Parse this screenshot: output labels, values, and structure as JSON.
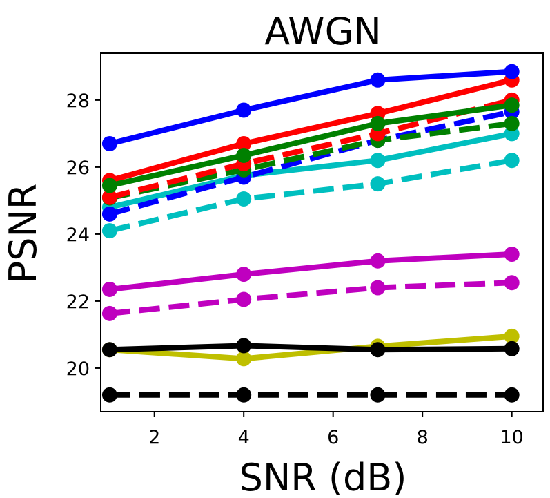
{
  "chart_data": {
    "type": "line",
    "title": "AWGN",
    "xlabel": "SNR (dB)",
    "ylabel": "PSNR",
    "xlim": [
      0.8,
      10.7
    ],
    "ylim": [
      18.7,
      29.4
    ],
    "x_ticks": [
      2,
      4,
      6,
      8,
      10
    ],
    "y_ticks": [
      20,
      22,
      24,
      26,
      28
    ],
    "x": [
      1,
      4,
      7,
      10
    ],
    "grid": false,
    "series": [
      {
        "name": "yellow-solid",
        "color": "#bfbf00",
        "dash": false,
        "values": [
          20.55,
          20.28,
          20.65,
          20.95
        ]
      },
      {
        "name": "black-dashed",
        "color": "#000000",
        "dash": true,
        "values": [
          19.2,
          19.2,
          19.2,
          19.2
        ]
      },
      {
        "name": "black-solid",
        "color": "#000000",
        "dash": false,
        "values": [
          20.55,
          20.67,
          20.55,
          20.58
        ]
      },
      {
        "name": "magenta-dashed",
        "color": "#bf00bf",
        "dash": true,
        "values": [
          21.63,
          22.05,
          22.4,
          22.55
        ]
      },
      {
        "name": "magenta-solid",
        "color": "#bf00bf",
        "dash": false,
        "values": [
          22.35,
          22.8,
          23.2,
          23.4
        ]
      },
      {
        "name": "cyan-dashed",
        "color": "#00bfbf",
        "dash": true,
        "values": [
          24.1,
          25.05,
          25.5,
          26.2
        ]
      },
      {
        "name": "cyan-solid",
        "color": "#00bfbf",
        "dash": false,
        "values": [
          24.8,
          25.75,
          26.2,
          27.0
        ]
      },
      {
        "name": "blue-dashed",
        "color": "#0000ff",
        "dash": true,
        "values": [
          24.6,
          25.7,
          26.8,
          27.65
        ]
      },
      {
        "name": "green-dashed",
        "color": "#008000",
        "dash": true,
        "values": [
          25.08,
          25.92,
          26.8,
          27.3
        ]
      },
      {
        "name": "red-dashed",
        "color": "#ff0000",
        "dash": true,
        "values": [
          25.1,
          26.1,
          27.0,
          28.0
        ]
      },
      {
        "name": "red-solid",
        "color": "#ff0000",
        "dash": false,
        "values": [
          25.6,
          26.7,
          27.6,
          28.6
        ]
      },
      {
        "name": "green-solid",
        "color": "#008000",
        "dash": false,
        "values": [
          25.45,
          26.35,
          27.3,
          27.85
        ]
      },
      {
        "name": "blue-solid",
        "color": "#0000ff",
        "dash": false,
        "values": [
          26.7,
          27.7,
          28.6,
          28.85
        ]
      }
    ]
  }
}
